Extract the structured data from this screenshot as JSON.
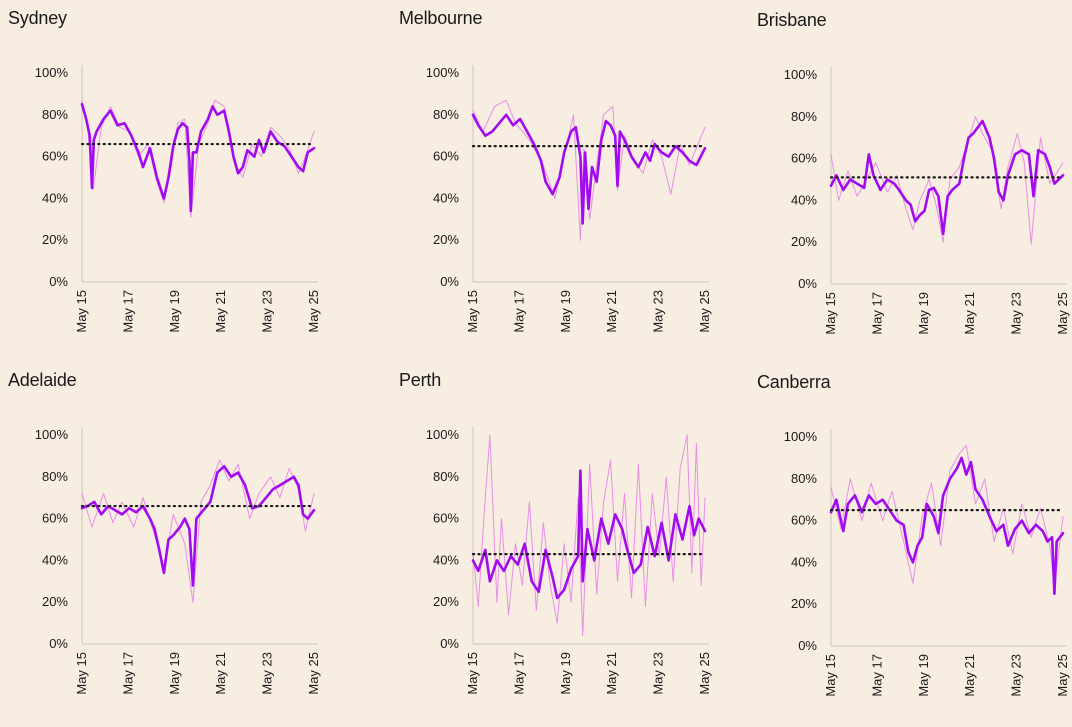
{
  "colors": {
    "background": "#f7ede1",
    "series_smoothed": "#a20af0",
    "series_raw": "#e67ee6",
    "average_line": "#1a1a1a",
    "axis": "#cfc6bb"
  },
  "chart_data": [
    {
      "type": "line",
      "title": "Sydney",
      "x_ticks": [
        "May 15",
        "May 17",
        "May 19",
        "May 21",
        "May 23",
        "May 25"
      ],
      "y_ticks": [
        "0%",
        "20%",
        "40%",
        "60%",
        "80%",
        "100%"
      ],
      "ylim": [
        0,
        100
      ],
      "xlim": [
        2015.37,
        2025.37
      ],
      "average": 66,
      "series": [
        {
          "role": "smoothed",
          "x": [
            2015.37,
            2015.55,
            2015.7,
            2015.8,
            2015.88,
            2016.0,
            2016.3,
            2016.6,
            2016.9,
            2017.2,
            2017.5,
            2017.8,
            2018.0,
            2018.3,
            2018.6,
            2018.9,
            2019.1,
            2019.3,
            2019.5,
            2019.7,
            2019.9,
            2020.0,
            2020.06,
            2020.15,
            2020.3,
            2020.5,
            2020.8,
            2021.0,
            2021.2,
            2021.5,
            2021.7,
            2021.9,
            2022.1,
            2022.3,
            2022.5,
            2022.8,
            2023.0,
            2023.2,
            2023.5,
            2023.8,
            2024.1,
            2024.4,
            2024.7,
            2024.9,
            2025.1,
            2025.37
          ],
          "y": [
            85,
            78,
            70,
            45,
            68,
            72,
            78,
            82,
            75,
            76,
            70,
            62,
            55,
            64,
            50,
            40,
            50,
            65,
            73,
            76,
            74,
            58,
            34,
            62,
            62,
            72,
            78,
            84,
            80,
            82,
            72,
            60,
            52,
            55,
            63,
            60,
            68,
            62,
            72,
            67,
            65,
            60,
            55,
            53,
            62,
            64
          ]
        },
        {
          "role": "raw",
          "x": [
            2015.37,
            2015.6,
            2015.85,
            2016.2,
            2016.6,
            2017.0,
            2017.4,
            2017.8,
            2018.2,
            2018.6,
            2018.9,
            2019.2,
            2019.5,
            2019.8,
            2020.06,
            2020.4,
            2020.8,
            2021.1,
            2021.5,
            2021.9,
            2022.3,
            2022.7,
            2023.1,
            2023.5,
            2023.9,
            2024.3,
            2024.7,
            2025.0,
            2025.37
          ],
          "y": [
            87,
            76,
            44,
            74,
            84,
            74,
            72,
            60,
            66,
            48,
            38,
            54,
            76,
            78,
            31,
            66,
            76,
            87,
            84,
            58,
            50,
            66,
            60,
            74,
            70,
            64,
            52,
            60,
            72
          ]
        }
      ]
    },
    {
      "type": "line",
      "title": "Melbourne",
      "x_ticks": [
        "May 15",
        "May 17",
        "May 19",
        "May 21",
        "May 23",
        "May 25"
      ],
      "y_ticks": [
        "0%",
        "20%",
        "40%",
        "60%",
        "80%",
        "100%"
      ],
      "ylim": [
        0,
        100
      ],
      "xlim": [
        2015.37,
        2025.37
      ],
      "average": 65,
      "series": [
        {
          "role": "smoothed",
          "x": [
            2015.37,
            2015.6,
            2015.9,
            2016.2,
            2016.5,
            2016.8,
            2017.1,
            2017.4,
            2017.7,
            2018.0,
            2018.3,
            2018.5,
            2018.8,
            2019.1,
            2019.3,
            2019.6,
            2019.8,
            2020.0,
            2020.1,
            2020.2,
            2020.35,
            2020.5,
            2020.7,
            2020.9,
            2021.1,
            2021.3,
            2021.5,
            2021.6,
            2021.7,
            2021.9,
            2022.2,
            2022.5,
            2022.8,
            2023.0,
            2023.2,
            2023.5,
            2023.8,
            2024.1,
            2024.4,
            2024.7,
            2025.0,
            2025.37
          ],
          "y": [
            80,
            75,
            70,
            72,
            76,
            80,
            75,
            78,
            72,
            66,
            58,
            48,
            42,
            50,
            62,
            72,
            74,
            60,
            28,
            62,
            35,
            55,
            48,
            68,
            77,
            75,
            70,
            46,
            72,
            68,
            60,
            55,
            62,
            58,
            66,
            62,
            60,
            65,
            62,
            58,
            56,
            64
          ]
        },
        {
          "role": "raw",
          "x": [
            2015.37,
            2015.8,
            2016.3,
            2016.8,
            2017.2,
            2017.8,
            2018.4,
            2018.9,
            2019.3,
            2019.7,
            2020.0,
            2020.15,
            2020.4,
            2020.7,
            2021.0,
            2021.4,
            2021.6,
            2021.9,
            2022.3,
            2022.7,
            2023.1,
            2023.5,
            2023.9,
            2024.3,
            2024.7,
            2025.37
          ],
          "y": [
            82,
            72,
            84,
            87,
            76,
            68,
            56,
            40,
            60,
            80,
            20,
            64,
            30,
            56,
            80,
            84,
            44,
            70,
            58,
            52,
            68,
            60,
            42,
            66,
            56,
            74
          ]
        }
      ]
    },
    {
      "type": "line",
      "title": "Brisbane",
      "x_ticks": [
        "May 15",
        "May 17",
        "May 19",
        "May 21",
        "May 23",
        "May 25"
      ],
      "y_ticks": [
        "0%",
        "20%",
        "40%",
        "60%",
        "80%",
        "100%"
      ],
      "ylim": [
        0,
        100
      ],
      "xlim": [
        2015.37,
        2025.37
      ],
      "average": 51,
      "series": [
        {
          "role": "smoothed",
          "x": [
            2015.37,
            2015.6,
            2015.9,
            2016.2,
            2016.5,
            2016.8,
            2017.0,
            2017.2,
            2017.5,
            2017.8,
            2018.1,
            2018.3,
            2018.6,
            2018.8,
            2019.0,
            2019.2,
            2019.4,
            2019.6,
            2019.8,
            2020.0,
            2020.2,
            2020.4,
            2020.6,
            2020.9,
            2021.1,
            2021.3,
            2021.5,
            2021.7,
            2021.9,
            2022.2,
            2022.4,
            2022.6,
            2022.8,
            2023.0,
            2023.3,
            2023.6,
            2023.9,
            2024.1,
            2024.3,
            2024.6,
            2024.8,
            2025.0,
            2025.37
          ],
          "y": [
            47,
            52,
            45,
            50,
            48,
            46,
            62,
            52,
            45,
            50,
            48,
            45,
            40,
            38,
            30,
            33,
            35,
            45,
            46,
            42,
            24,
            42,
            45,
            48,
            60,
            70,
            72,
            75,
            78,
            70,
            60,
            44,
            40,
            52,
            62,
            64,
            62,
            42,
            64,
            62,
            56,
            48,
            52
          ]
        },
        {
          "role": "raw",
          "x": [
            2015.37,
            2015.7,
            2016.1,
            2016.5,
            2016.9,
            2017.3,
            2017.8,
            2018.2,
            2018.6,
            2018.9,
            2019.2,
            2019.6,
            2019.9,
            2020.2,
            2020.5,
            2020.9,
            2021.2,
            2021.6,
            2021.9,
            2022.3,
            2022.7,
            2023.0,
            2023.4,
            2023.7,
            2024.0,
            2024.4,
            2024.8,
            2025.37
          ],
          "y": [
            62,
            40,
            54,
            42,
            50,
            58,
            44,
            52,
            36,
            26,
            40,
            50,
            38,
            20,
            50,
            56,
            66,
            80,
            72,
            64,
            36,
            56,
            72,
            58,
            19,
            70,
            48,
            58
          ]
        }
      ]
    },
    {
      "type": "line",
      "title": "Adelaide",
      "x_ticks": [
        "May 15",
        "May 17",
        "May 19",
        "May 21",
        "May 23",
        "May 25"
      ],
      "y_ticks": [
        "0%",
        "20%",
        "40%",
        "60%",
        "80%",
        "100%"
      ],
      "ylim": [
        0,
        100
      ],
      "xlim": [
        2015.37,
        2025.37
      ],
      "average": 66,
      "series": [
        {
          "role": "smoothed",
          "x": [
            2015.37,
            2015.6,
            2015.9,
            2016.2,
            2016.5,
            2016.8,
            2017.1,
            2017.4,
            2017.7,
            2018.0,
            2018.3,
            2018.5,
            2018.7,
            2018.9,
            2019.1,
            2019.3,
            2019.6,
            2019.8,
            2020.0,
            2020.15,
            2020.3,
            2020.6,
            2020.9,
            2021.2,
            2021.5,
            2021.8,
            2022.1,
            2022.4,
            2022.7,
            2023.0,
            2023.3,
            2023.6,
            2023.9,
            2024.2,
            2024.5,
            2024.7,
            2024.9,
            2025.1,
            2025.37
          ],
          "y": [
            65,
            66,
            68,
            62,
            66,
            64,
            62,
            65,
            63,
            66,
            60,
            55,
            45,
            34,
            50,
            52,
            56,
            60,
            55,
            28,
            60,
            64,
            68,
            82,
            85,
            80,
            82,
            76,
            65,
            66,
            70,
            74,
            76,
            78,
            80,
            76,
            62,
            60,
            64
          ]
        },
        {
          "role": "raw",
          "x": [
            2015.37,
            2015.8,
            2016.3,
            2016.7,
            2017.1,
            2017.6,
            2018.0,
            2018.5,
            2018.9,
            2019.3,
            2019.8,
            2020.15,
            2020.5,
            2020.9,
            2021.3,
            2021.7,
            2022.1,
            2022.6,
            2023.0,
            2023.5,
            2023.9,
            2024.3,
            2024.7,
            2025.0,
            2025.37
          ],
          "y": [
            72,
            56,
            72,
            58,
            68,
            56,
            70,
            52,
            36,
            62,
            48,
            20,
            68,
            76,
            88,
            78,
            86,
            60,
            72,
            80,
            70,
            84,
            74,
            54,
            72
          ]
        }
      ]
    },
    {
      "type": "line",
      "title": "Perth",
      "x_ticks": [
        "May 15",
        "May 17",
        "May 19",
        "May 21",
        "May 23",
        "May 25"
      ],
      "y_ticks": [
        "0%",
        "20%",
        "40%",
        "60%",
        "80%",
        "100%"
      ],
      "ylim": [
        0,
        100
      ],
      "xlim": [
        2015.37,
        2025.37
      ],
      "average": 43,
      "series": [
        {
          "role": "smoothed",
          "x": [
            2015.37,
            2015.6,
            2015.9,
            2016.1,
            2016.4,
            2016.7,
            2017.0,
            2017.3,
            2017.6,
            2017.9,
            2018.2,
            2018.5,
            2018.8,
            2019.0,
            2019.3,
            2019.6,
            2019.9,
            2020.0,
            2020.1,
            2020.3,
            2020.6,
            2020.9,
            2021.2,
            2021.5,
            2021.8,
            2022.0,
            2022.3,
            2022.6,
            2022.9,
            2023.2,
            2023.5,
            2023.8,
            2024.1,
            2024.4,
            2024.7,
            2024.9,
            2025.1,
            2025.37
          ],
          "y": [
            40,
            35,
            45,
            30,
            40,
            35,
            42,
            38,
            48,
            30,
            25,
            45,
            32,
            22,
            26,
            36,
            42,
            83,
            30,
            55,
            40,
            60,
            48,
            62,
            55,
            46,
            34,
            38,
            56,
            42,
            58,
            40,
            62,
            50,
            66,
            52,
            60,
            54
          ]
        },
        {
          "role": "raw",
          "x": [
            2015.37,
            2015.6,
            2015.85,
            2016.1,
            2016.4,
            2016.6,
            2016.9,
            2017.2,
            2017.5,
            2017.8,
            2018.1,
            2018.4,
            2018.7,
            2019.0,
            2019.3,
            2019.6,
            2019.9,
            2020.1,
            2020.4,
            2020.7,
            2021.0,
            2021.3,
            2021.6,
            2021.9,
            2022.2,
            2022.5,
            2022.8,
            2023.1,
            2023.4,
            2023.7,
            2024.0,
            2024.3,
            2024.6,
            2024.8,
            2025.0,
            2025.2,
            2025.37
          ],
          "y": [
            44,
            18,
            62,
            100,
            20,
            60,
            14,
            48,
            28,
            68,
            16,
            58,
            28,
            10,
            48,
            20,
            70,
            4,
            86,
            24,
            68,
            88,
            30,
            72,
            22,
            86,
            18,
            72,
            42,
            80,
            30,
            84,
            100,
            34,
            96,
            28,
            70
          ]
        }
      ]
    },
    {
      "type": "line",
      "title": "Canberra",
      "x_ticks": [
        "May 15",
        "May 17",
        "May 19",
        "May 21",
        "May 23",
        "May 25"
      ],
      "y_ticks": [
        "0%",
        "20%",
        "40%",
        "60%",
        "80%",
        "100%"
      ],
      "ylim": [
        0,
        100
      ],
      "xlim": [
        2015.37,
        2025.37
      ],
      "average": 65,
      "series": [
        {
          "role": "smoothed",
          "x": [
            2015.37,
            2015.6,
            2015.9,
            2016.1,
            2016.4,
            2016.7,
            2017.0,
            2017.3,
            2017.6,
            2017.9,
            2018.2,
            2018.5,
            2018.7,
            2018.9,
            2019.1,
            2019.3,
            2019.5,
            2019.8,
            2020.0,
            2020.2,
            2020.5,
            2020.8,
            2021.0,
            2021.2,
            2021.4,
            2021.6,
            2021.9,
            2022.2,
            2022.5,
            2022.8,
            2023.0,
            2023.3,
            2023.6,
            2023.9,
            2024.2,
            2024.5,
            2024.7,
            2024.9,
            2025.0,
            2025.1,
            2025.37
          ],
          "y": [
            64,
            70,
            55,
            68,
            72,
            64,
            72,
            68,
            70,
            65,
            60,
            58,
            45,
            40,
            48,
            52,
            68,
            62,
            54,
            72,
            80,
            85,
            90,
            82,
            88,
            75,
            70,
            62,
            55,
            58,
            48,
            56,
            60,
            54,
            58,
            55,
            50,
            52,
            25,
            50,
            54
          ]
        },
        {
          "role": "raw",
          "x": [
            2015.37,
            2015.8,
            2016.2,
            2016.7,
            2017.1,
            2017.6,
            2018.0,
            2018.5,
            2018.9,
            2019.3,
            2019.7,
            2020.1,
            2020.5,
            2020.9,
            2021.2,
            2021.6,
            2022.0,
            2022.4,
            2022.8,
            2023.2,
            2023.6,
            2024.0,
            2024.4,
            2024.8,
            2025.0,
            2025.37
          ],
          "y": [
            76,
            56,
            80,
            60,
            78,
            60,
            74,
            50,
            30,
            62,
            78,
            48,
            84,
            92,
            96,
            68,
            80,
            50,
            66,
            44,
            68,
            52,
            66,
            48,
            28,
            62
          ]
        }
      ]
    }
  ]
}
